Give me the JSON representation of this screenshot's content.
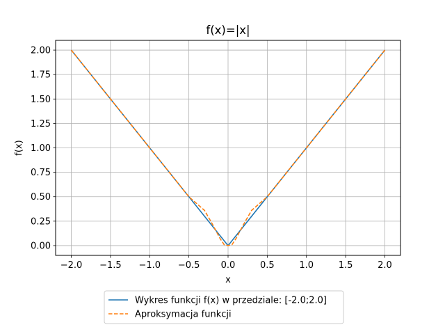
{
  "chart_data": {
    "type": "line",
    "title": "f(x)=|x|",
    "xlabel": "x",
    "ylabel": "f(x)",
    "xlim": [
      -2.2,
      2.2
    ],
    "ylim": [
      -0.1,
      2.1
    ],
    "grid": true,
    "legend_position": "below",
    "x_ticks": [
      -2.0,
      -1.5,
      -1.0,
      -0.5,
      0.0,
      0.5,
      1.0,
      1.5,
      2.0
    ],
    "x_tick_labels": [
      "−2.0",
      "−1.5",
      "−1.0",
      "−0.5",
      "0.0",
      "0.5",
      "1.0",
      "1.5",
      "2.0"
    ],
    "y_ticks": [
      0.0,
      0.25,
      0.5,
      0.75,
      1.0,
      1.25,
      1.5,
      1.75,
      2.0
    ],
    "y_tick_labels": [
      "0.00",
      "0.25",
      "0.50",
      "0.75",
      "1.00",
      "1.25",
      "1.50",
      "1.75",
      "2.00"
    ],
    "series": [
      {
        "name": "Wykres funkcji f(x) w przedziale: [-2.0;2.0]",
        "color": "#1f77b4",
        "style": "solid",
        "x": [
          -2.0,
          0.0,
          2.0
        ],
        "y": [
          2.0,
          0.0,
          2.0
        ]
      },
      {
        "name": "Aproksymacja funkcji",
        "color": "#ff7f0e",
        "style": "dashed",
        "x": [
          -2.0,
          -1.5,
          -1.0,
          -0.5,
          -0.3,
          -0.2,
          -0.1,
          -0.05,
          0.0,
          0.05,
          0.1,
          0.2,
          0.3,
          0.5,
          1.0,
          1.5,
          2.0
        ],
        "y": [
          2.0,
          1.5,
          1.0,
          0.5,
          0.36,
          0.22,
          0.07,
          0.01,
          0.0,
          0.01,
          0.07,
          0.22,
          0.36,
          0.5,
          1.0,
          1.5,
          2.0
        ]
      }
    ]
  }
}
